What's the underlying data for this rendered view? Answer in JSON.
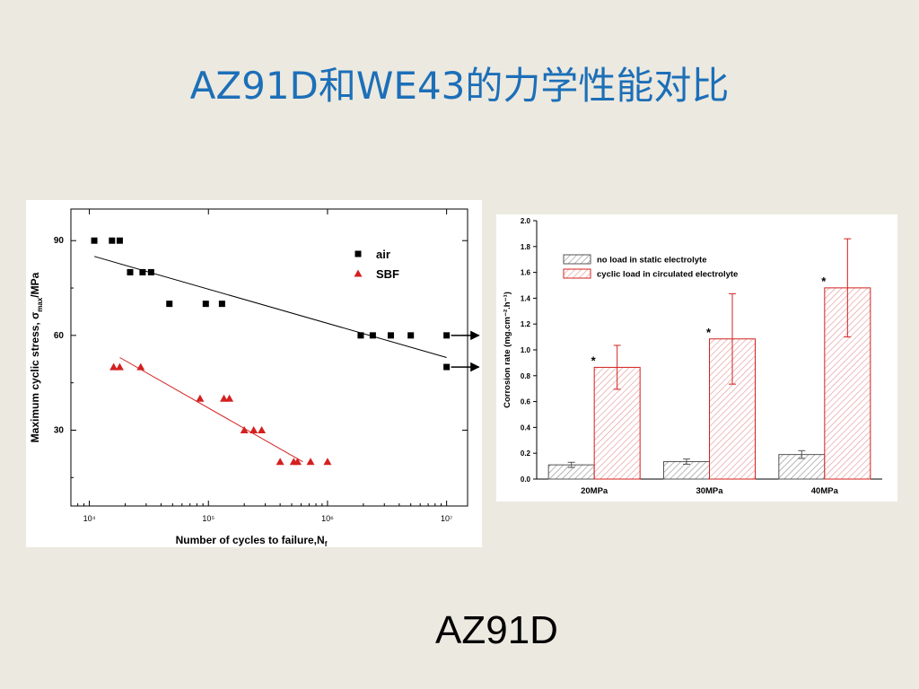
{
  "slide": {
    "title": "AZ91D和WE43的力学性能对比",
    "caption": "AZ91D"
  },
  "chart_data": [
    {
      "type": "scatter",
      "xscale": "log",
      "xlabel": "Number of cycles to failure,N",
      "xlabel_subscript": "f",
      "ylabel": "Maximum cyclic stress, σ",
      "ylabel_subscript": "max",
      "ylabel_unit": "/MPa",
      "xlim": [
        7000,
        15000000
      ],
      "ylim": [
        6,
        100
      ],
      "x_ticks": [
        {
          "value": 10000,
          "label": "10⁴"
        },
        {
          "value": 100000,
          "label": "10⁵"
        },
        {
          "value": 1000000,
          "label": "10⁶"
        },
        {
          "value": 10000000,
          "label": "10⁷"
        }
      ],
      "y_ticks": [
        {
          "value": 30,
          "label": "30"
        },
        {
          "value": 60,
          "label": "60"
        },
        {
          "value": 90,
          "label": "90"
        }
      ],
      "legend_position": "top-right",
      "series": [
        {
          "name": "air",
          "marker": "square",
          "color": "#000000",
          "points": [
            {
              "x": 11000,
              "y": 90
            },
            {
              "x": 15500,
              "y": 90
            },
            {
              "x": 18000,
              "y": 90
            },
            {
              "x": 22000,
              "y": 80
            },
            {
              "x": 28000,
              "y": 80
            },
            {
              "x": 33000,
              "y": 80
            },
            {
              "x": 47000,
              "y": 70
            },
            {
              "x": 95000,
              "y": 70
            },
            {
              "x": 130000,
              "y": 70
            },
            {
              "x": 1900000,
              "y": 60
            },
            {
              "x": 2400000,
              "y": 60
            },
            {
              "x": 3400000,
              "y": 60
            },
            {
              "x": 5000000,
              "y": 60
            },
            {
              "x": 10000000,
              "y": 60
            },
            {
              "x": 10000000,
              "y": 50
            }
          ],
          "fit": [
            {
              "x": 11000,
              "y": 85
            },
            {
              "x": 10000000,
              "y": 53
            }
          ],
          "runouts": [
            {
              "x": 10000000,
              "y": 60
            },
            {
              "x": 10000000,
              "y": 50
            }
          ]
        },
        {
          "name": "SBF",
          "marker": "triangle",
          "color": "#D42020",
          "points": [
            {
              "x": 16000,
              "y": 50
            },
            {
              "x": 18000,
              "y": 50
            },
            {
              "x": 27000,
              "y": 50
            },
            {
              "x": 85000,
              "y": 40
            },
            {
              "x": 135000,
              "y": 40
            },
            {
              "x": 150000,
              "y": 40
            },
            {
              "x": 200000,
              "y": 30
            },
            {
              "x": 240000,
              "y": 30
            },
            {
              "x": 280000,
              "y": 30
            },
            {
              "x": 400000,
              "y": 20
            },
            {
              "x": 520000,
              "y": 20
            },
            {
              "x": 560000,
              "y": 20
            },
            {
              "x": 720000,
              "y": 20
            },
            {
              "x": 1000000,
              "y": 20
            }
          ],
          "fit": [
            {
              "x": 18000,
              "y": 53
            },
            {
              "x": 620000,
              "y": 20
            }
          ]
        }
      ]
    },
    {
      "type": "bar",
      "ylabel": "Corrosion rate (mg.cm⁻².h⁻¹)",
      "ylim": [
        0,
        2.0
      ],
      "y_ticks": [
        "0.0",
        "0.2",
        "0.4",
        "0.6",
        "0.8",
        "1.0",
        "1.2",
        "1.4",
        "1.6",
        "1.8",
        "2.0"
      ],
      "categories": [
        "20MPa",
        "30MPa",
        "40MPa"
      ],
      "legend_position": "top-left",
      "series": [
        {
          "name": "no load in static electrolyte",
          "color": "#555555",
          "values": [
            0.11,
            0.135,
            0.19
          ],
          "errors": [
            0.02,
            0.02,
            0.03
          ]
        },
        {
          "name": "cyclic load in circulated electrolyte",
          "color": "#D42020",
          "values": [
            0.865,
            1.085,
            1.48
          ],
          "errors": [
            0.17,
            0.35,
            0.38
          ],
          "annotations": [
            "*",
            "*",
            "*"
          ]
        }
      ]
    }
  ]
}
